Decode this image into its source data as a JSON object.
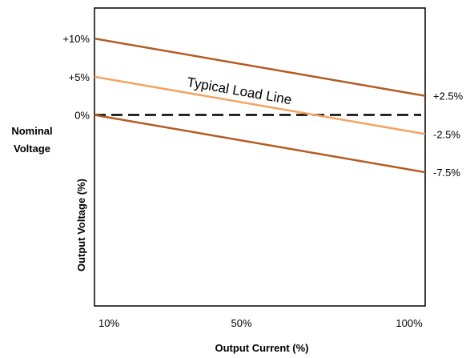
{
  "chart_data": {
    "type": "line",
    "title": "",
    "xlabel": "Output Current (%)",
    "ylabel": "Output Voltage (%)",
    "nominal_label_line1": "Nominal",
    "nominal_label_line2": "Voltage",
    "x": [
      10,
      100
    ],
    "xlim": [
      10,
      100
    ],
    "ylim": [
      -25,
      14
    ],
    "x_tick_labels": [
      {
        "value": 10,
        "label": "10%"
      },
      {
        "value": 50,
        "label": "50%"
      },
      {
        "value": 100,
        "label": "100%"
      }
    ],
    "y_tick_labels": [
      {
        "value": 10,
        "label": "+10%"
      },
      {
        "value": 5,
        "label": "+5%"
      },
      {
        "value": 0,
        "label": "0%"
      }
    ],
    "series": [
      {
        "key": "upper",
        "values": [
          10,
          2.5
        ],
        "color": "#b35a1f",
        "end_label": "+2.5%"
      },
      {
        "key": "typical",
        "name": "Typical Load Line",
        "values": [
          5,
          -2.5
        ],
        "color": "#f4a460",
        "end_label": "-2.5%"
      },
      {
        "key": "lower",
        "values": [
          0,
          -7.5
        ],
        "color": "#b35a1f",
        "end_label": "-7.5%"
      }
    ],
    "reference_line": {
      "value": 0,
      "style": "dashed",
      "color": "#000000"
    },
    "grid": false,
    "legend": "none"
  }
}
